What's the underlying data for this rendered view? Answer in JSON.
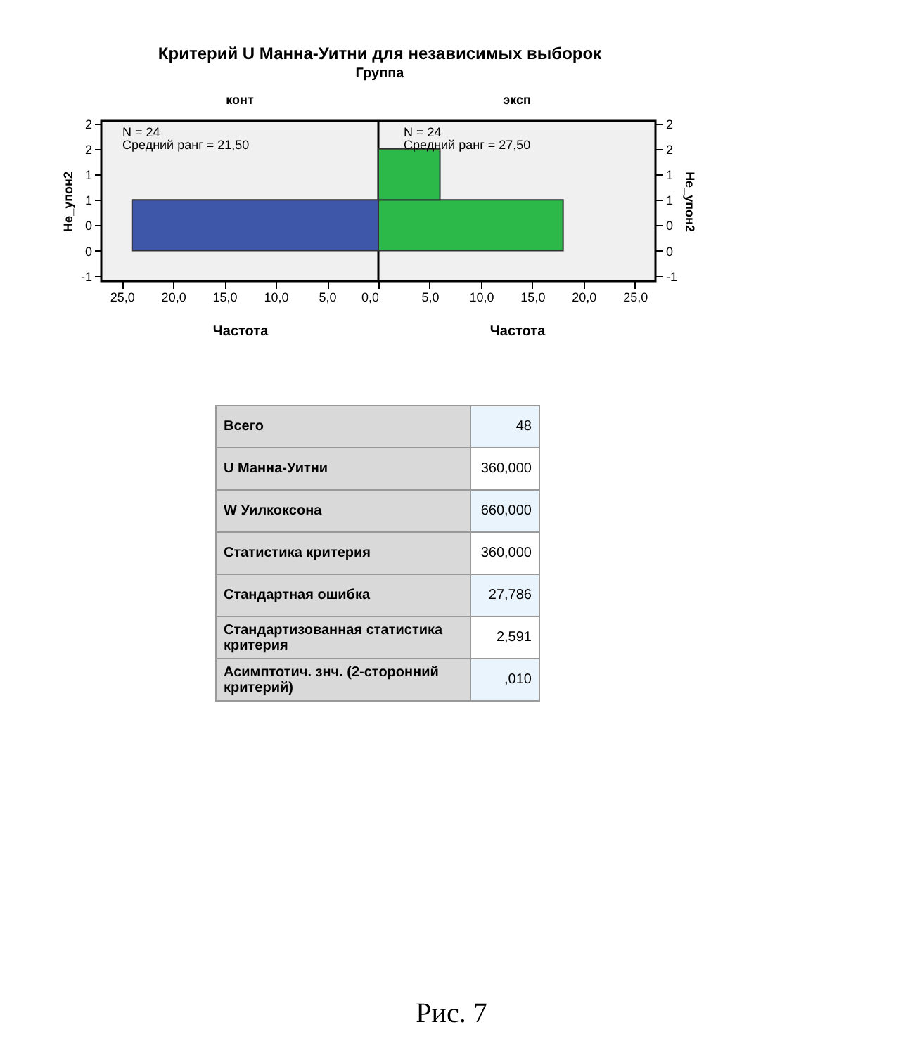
{
  "chart_data": [
    {
      "type": "other",
      "title": "Критерий U Манна-Уитни для независимых выборок",
      "subtitle": "Группа"
    },
    {
      "type": "histogram",
      "orientation": "horizontal",
      "title": "конт",
      "xlabel": "Частота",
      "ylabel": "Не_упон2",
      "bins": [
        -0.5,
        0.5,
        1.5
      ],
      "values": [
        24,
        0
      ],
      "color": "#3f57a8",
      "xlim": [
        27,
        0
      ],
      "xticks": [
        {
          "value": 25,
          "label": "25,0"
        },
        {
          "value": 20,
          "label": "20,0"
        },
        {
          "value": 15,
          "label": "15,0"
        },
        {
          "value": 10,
          "label": "10,0"
        },
        {
          "value": 5,
          "label": "5,0"
        },
        {
          "value": 0,
          "label": "0,0"
        }
      ],
      "ylim": [
        -1.1,
        2.05
      ],
      "yticks": [
        {
          "value": -1,
          "label": "-1"
        },
        {
          "value": -0.5,
          "label": "0"
        },
        {
          "value": 0,
          "label": "0"
        },
        {
          "value": 0.5,
          "label": "1"
        },
        {
          "value": 1,
          "label": "1"
        },
        {
          "value": 1.5,
          "label": "2"
        },
        {
          "value": 2,
          "label": "2"
        }
      ],
      "annotations": [
        "N = 24",
        "Средний ранг = 21,50"
      ],
      "grid": false
    },
    {
      "type": "histogram",
      "orientation": "horizontal",
      "title": "эксп",
      "xlabel": "Частота",
      "ylabel": "Не_упон2",
      "bins": [
        -0.5,
        0.5,
        1.5
      ],
      "values": [
        18,
        6
      ],
      "color": "#2db84a",
      "xlim": [
        0,
        27
      ],
      "xticks": [
        {
          "value": 0,
          "label": null
        },
        {
          "value": 5,
          "label": "5,0"
        },
        {
          "value": 10,
          "label": "10,0"
        },
        {
          "value": 15,
          "label": "15,0"
        },
        {
          "value": 20,
          "label": "20,0"
        },
        {
          "value": 25,
          "label": "25,0"
        }
      ],
      "ylim": [
        -1.1,
        2.05
      ],
      "yticks": [
        {
          "value": -1,
          "label": "-1"
        },
        {
          "value": -0.5,
          "label": "0"
        },
        {
          "value": 0,
          "label": "0"
        },
        {
          "value": 0.5,
          "label": "1"
        },
        {
          "value": 1,
          "label": "1"
        },
        {
          "value": 1.5,
          "label": "2"
        },
        {
          "value": 2,
          "label": "2"
        }
      ],
      "annotations": [
        "N = 24",
        "Средний ранг = 27,50"
      ],
      "grid": false
    },
    {
      "type": "other",
      "annotations": [
        "Всего",
        "48",
        "U Манна-Уитни",
        "360,000",
        "W Уилкоксона",
        "660,000",
        "Статистика критерия",
        "360,000",
        "Стандартная ошибка",
        "27,786",
        "Стандартизованная статистика критерия",
        "2,591",
        "Асимптотич. знч. (2-сторонний критерий)",
        ",010",
        "Рис. 7"
      ]
    }
  ]
}
